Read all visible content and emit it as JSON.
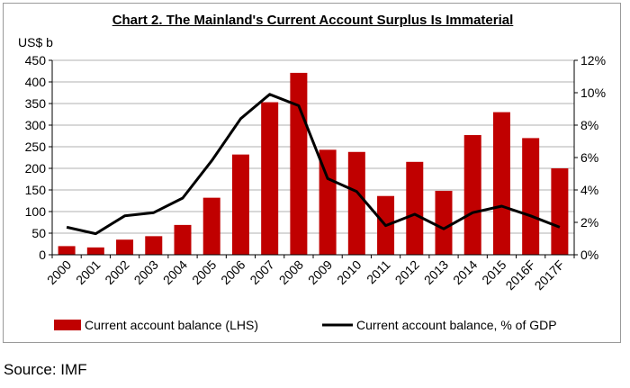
{
  "title": "Chart 2. The Mainland's Current  Account Surplus Is Immaterial",
  "source": "Source: IMF",
  "chart_data": {
    "type": "bar",
    "categories": [
      "2000",
      "2001",
      "2002",
      "2003",
      "2004",
      "2005",
      "2006",
      "2007",
      "2008",
      "2009",
      "2010",
      "2011",
      "2012",
      "2013",
      "2014",
      "2015",
      "2016F",
      "2017F"
    ],
    "left_axis": {
      "label": "US$ b",
      "min": 0,
      "max": 450,
      "ticks": [
        "0",
        "50",
        "100",
        "150",
        "200",
        "250",
        "300",
        "350",
        "400",
        "450"
      ]
    },
    "right_axis": {
      "min": 0,
      "max": 12,
      "ticks": [
        "0%",
        "2%",
        "4%",
        "6%",
        "8%",
        "10%",
        "12%"
      ]
    },
    "series": [
      {
        "name": "Current account balance (LHS)",
        "kind": "bar",
        "axis": "left",
        "color": "#c00000",
        "values": [
          20,
          17,
          35,
          43,
          69,
          132,
          232,
          353,
          421,
          243,
          238,
          136,
          215,
          148,
          277,
          330,
          270,
          200
        ]
      },
      {
        "name": "Current account balance, % of GDP",
        "kind": "line",
        "axis": "right",
        "color": "#000000",
        "values": [
          1.7,
          1.3,
          2.4,
          2.6,
          3.5,
          5.8,
          8.4,
          9.9,
          9.2,
          4.7,
          3.9,
          1.8,
          2.5,
          1.6,
          2.6,
          3.0,
          2.4,
          1.7
        ]
      }
    ],
    "grid": true,
    "legend_position": "bottom"
  }
}
